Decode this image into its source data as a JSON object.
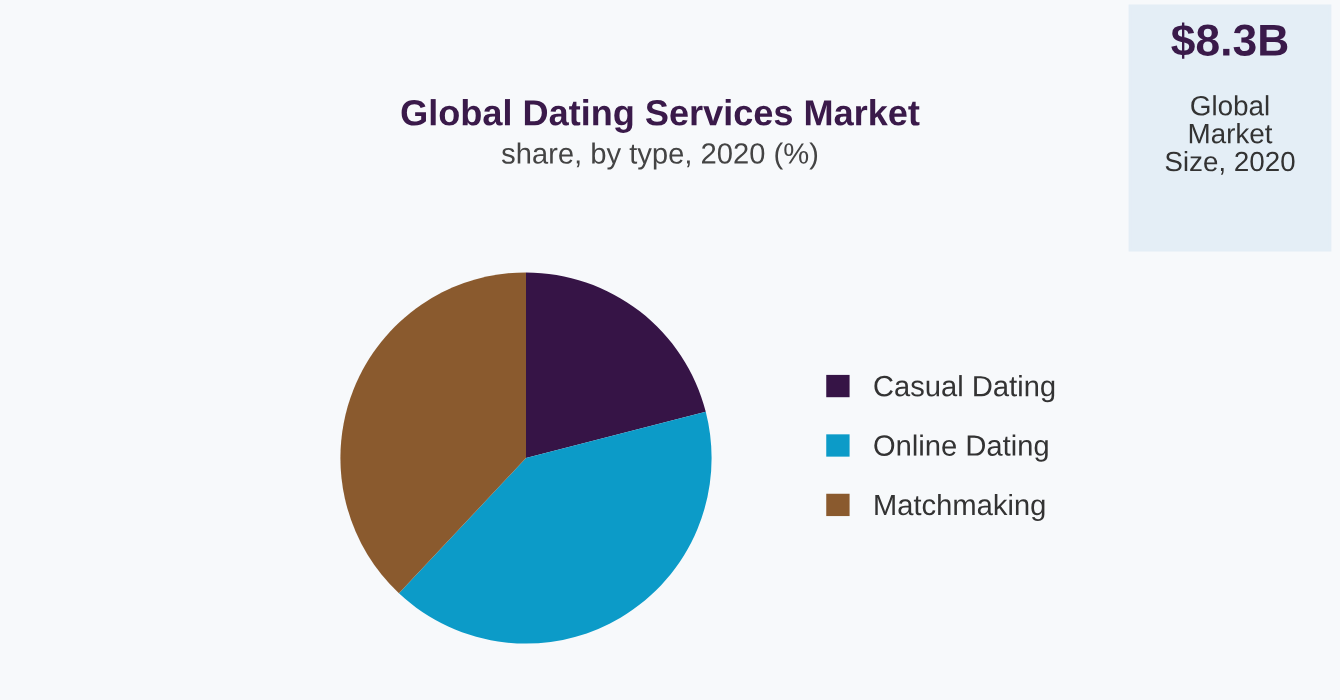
{
  "chart_data": {
    "type": "pie",
    "title": "Global Dating Services Market",
    "subtitle": "share, by type, 2020 (%)",
    "categories": [
      "Casual Dating",
      "Online Dating",
      "Matchmaking"
    ],
    "values": [
      21,
      41,
      38
    ],
    "colors": [
      "#361446",
      "#0c9bc8",
      "#8a5a2e"
    ],
    "legend": "right",
    "annotations": [
      "$8.3B",
      "Global\nMarket\nSize, 2020"
    ]
  }
}
